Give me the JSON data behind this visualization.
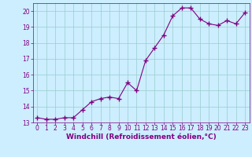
{
  "x": [
    0,
    1,
    2,
    3,
    4,
    5,
    6,
    7,
    8,
    9,
    10,
    11,
    12,
    13,
    14,
    15,
    16,
    17,
    18,
    19,
    20,
    21,
    22,
    23
  ],
  "y": [
    13.3,
    13.2,
    13.2,
    13.3,
    13.3,
    13.8,
    14.3,
    14.5,
    14.6,
    14.5,
    15.5,
    15.0,
    16.9,
    17.7,
    18.5,
    19.7,
    20.2,
    20.2,
    19.5,
    19.2,
    19.1,
    19.4,
    19.2,
    19.9
  ],
  "line_color": "#800080",
  "marker": "+",
  "markersize": 4,
  "linewidth": 0.8,
  "bg_color": "#cceeff",
  "grid_color": "#99cccc",
  "xlabel": "Windchill (Refroidissement éolien,°C)",
  "xlabel_color": "#800080",
  "xlabel_fontsize": 6.5,
  "tick_color": "#800080",
  "tick_fontsize": 5.5,
  "ylim": [
    13,
    20.5
  ],
  "xlim": [
    -0.5,
    23.5
  ],
  "yticks": [
    13,
    14,
    15,
    16,
    17,
    18,
    19,
    20
  ],
  "xticks": [
    0,
    1,
    2,
    3,
    4,
    5,
    6,
    7,
    8,
    9,
    10,
    11,
    12,
    13,
    14,
    15,
    16,
    17,
    18,
    19,
    20,
    21,
    22,
    23
  ]
}
